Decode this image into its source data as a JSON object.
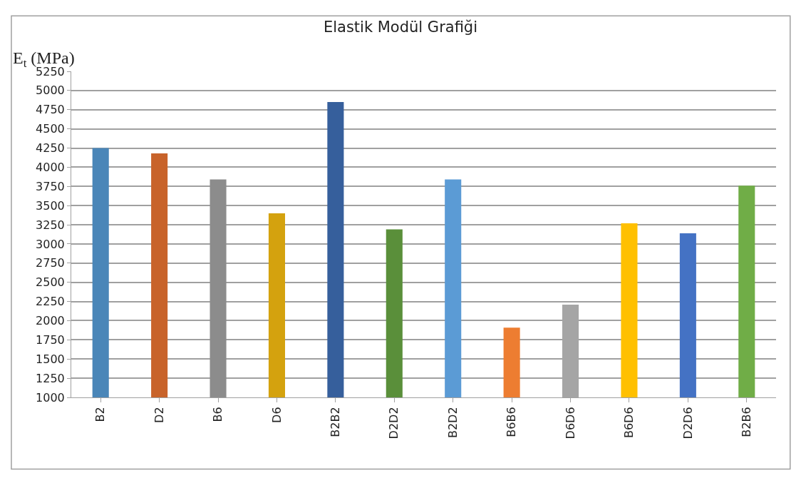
{
  "chart_data": {
    "type": "bar",
    "title": "Elastik Modül Grafiği",
    "ylabel": "E$_{t}$ (MPa)",
    "categories": [
      "B2",
      "D2",
      "B6",
      "D6",
      "B2B2",
      "D2D2",
      "B2D2",
      "B6B6",
      "D6D6",
      "B6D6",
      "D2D6",
      "B2B6"
    ],
    "values": [
      4250,
      4180,
      3840,
      3400,
      4850,
      3190,
      3840,
      1910,
      2210,
      3270,
      3140,
      3760
    ],
    "colors": [
      "#4a86b8",
      "#c8632a",
      "#8c8c8c",
      "#d4a20e",
      "#365f9c",
      "#5a8f3a",
      "#5b9bd5",
      "#ed7d31",
      "#a5a5a5",
      "#ffc000",
      "#4472c4",
      "#70ad47"
    ],
    "ylim": [
      1000,
      5250
    ],
    "yticks": [
      1000,
      1250,
      1500,
      1750,
      2000,
      2250,
      2500,
      2750,
      3000,
      3250,
      3500,
      3750,
      4000,
      4250,
      4500,
      4750,
      5000,
      5250
    ],
    "grid": "y",
    "legend": false
  }
}
